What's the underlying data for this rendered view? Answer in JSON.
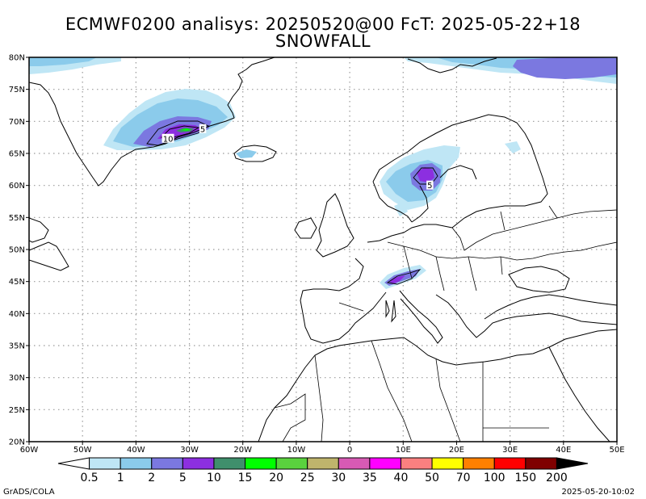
{
  "title_line1": "ECMWF0200 analisys: 20250520@00 FcT: 2025-05-22+18",
  "title_line2": "SNOWFALL",
  "map": {
    "lon_ticks": [
      "60W",
      "50W",
      "40W",
      "30W",
      "20W",
      "10W",
      "0",
      "10E",
      "20E",
      "30E",
      "40E",
      "50E"
    ],
    "lat_ticks": [
      "80N",
      "75N",
      "70N",
      "65N",
      "60N",
      "55N",
      "50N",
      "45N",
      "40N",
      "35N",
      "30N",
      "25N",
      "20N"
    ],
    "contour_labels": [
      {
        "text": "10",
        "lon": -34,
        "lat": 67.3
      },
      {
        "text": "5",
        "lon": -27.5,
        "lat": 68.8
      },
      {
        "text": "5",
        "lon": 15,
        "lat": 60.0
      }
    ]
  },
  "colorbar": {
    "labels": [
      "0.5",
      "1",
      "2",
      "5",
      "10",
      "15",
      "20",
      "25",
      "30",
      "35",
      "40",
      "50",
      "70",
      "100",
      "150",
      "200"
    ],
    "colors": [
      "#bfe6f5",
      "#8bcbeb",
      "#7b78e0",
      "#8c2fe0",
      "#3f8f6c",
      "#00ff00",
      "#5ad23e",
      "#bfb46c",
      "#d75ab4",
      "#ff00ff",
      "#fa8080",
      "#ffff00",
      "#ff8000",
      "#ff0000",
      "#7f0000"
    ],
    "under_color": "#ffffff",
    "over_color": "#000000"
  },
  "footer": {
    "left": "GrADS/COLA",
    "right": "2025-05-20-10:02"
  }
}
